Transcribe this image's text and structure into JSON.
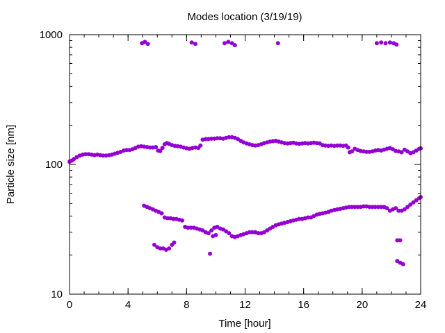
{
  "chart_data": {
    "type": "scatter",
    "title": "Modes location (3/19/19)",
    "xlabel": "Time [hour]",
    "ylabel": "Particle size [nm]",
    "xlim": [
      0,
      24
    ],
    "ylim": [
      10,
      1000
    ],
    "yscale": "log",
    "grid": false,
    "legend": "none",
    "x_ticks": [
      0,
      4,
      8,
      12,
      16,
      20,
      24
    ],
    "x_tick_labels": [
      "0",
      "4",
      "8",
      "12",
      "16",
      "20",
      "24"
    ],
    "y_ticks": [
      10,
      100,
      1000
    ],
    "y_tick_labels": [
      "10",
      "100",
      "1000"
    ],
    "marker_color": "#9400d3",
    "series": [
      {
        "points": [
          [
            0.0,
            105
          ],
          [
            0.15,
            107
          ],
          [
            0.3,
            110
          ],
          [
            0.5,
            114
          ],
          [
            0.7,
            117
          ],
          [
            0.9,
            119
          ],
          [
            1.1,
            120
          ],
          [
            1.3,
            120
          ],
          [
            1.5,
            119
          ],
          [
            1.7,
            118
          ],
          [
            1.9,
            119
          ],
          [
            2.1,
            118
          ],
          [
            2.3,
            117
          ],
          [
            2.5,
            117
          ],
          [
            2.7,
            118
          ],
          [
            2.9,
            119
          ],
          [
            3.1,
            121
          ],
          [
            3.3,
            123
          ],
          [
            3.5,
            125
          ],
          [
            3.7,
            128
          ],
          [
            3.9,
            129
          ],
          [
            4.1,
            129
          ],
          [
            4.3,
            131
          ],
          [
            4.5,
            134
          ],
          [
            4.7,
            137
          ],
          [
            4.9,
            138
          ],
          [
            5.1,
            137
          ],
          [
            5.3,
            136
          ],
          [
            5.5,
            135
          ],
          [
            5.7,
            135
          ],
          [
            5.9,
            136
          ],
          [
            6.05,
            128
          ],
          [
            6.2,
            127
          ],
          [
            6.35,
            134
          ],
          [
            6.5,
            143
          ],
          [
            6.65,
            146
          ],
          [
            6.8,
            144
          ],
          [
            7.0,
            141
          ],
          [
            7.2,
            139
          ],
          [
            7.4,
            138
          ],
          [
            7.6,
            137
          ],
          [
            7.8,
            135
          ],
          [
            8.0,
            133
          ],
          [
            8.2,
            132
          ],
          [
            8.4,
            134
          ],
          [
            8.6,
            135
          ],
          [
            8.8,
            134
          ],
          [
            8.95,
            140
          ],
          [
            9.1,
            155
          ],
          [
            9.3,
            157
          ],
          [
            9.5,
            157
          ],
          [
            9.7,
            158
          ],
          [
            9.9,
            158
          ],
          [
            10.1,
            159
          ],
          [
            10.3,
            159
          ],
          [
            10.5,
            158
          ],
          [
            10.7,
            160
          ],
          [
            10.9,
            162
          ],
          [
            11.1,
            162
          ],
          [
            11.3,
            160
          ],
          [
            11.5,
            157
          ],
          [
            11.7,
            152
          ],
          [
            11.9,
            148
          ],
          [
            12.1,
            145
          ],
          [
            12.3,
            143
          ],
          [
            12.5,
            141
          ],
          [
            12.7,
            140
          ],
          [
            12.9,
            141
          ],
          [
            13.1,
            143
          ],
          [
            13.3,
            146
          ],
          [
            13.5,
            148
          ],
          [
            13.7,
            150
          ],
          [
            13.9,
            151
          ],
          [
            14.1,
            152
          ],
          [
            14.3,
            150
          ],
          [
            14.5,
            148
          ],
          [
            14.7,
            146
          ],
          [
            14.9,
            145
          ],
          [
            15.1,
            146
          ],
          [
            15.3,
            147
          ],
          [
            15.5,
            145
          ],
          [
            15.7,
            144
          ],
          [
            15.9,
            145
          ],
          [
            16.1,
            146
          ],
          [
            16.3,
            145
          ],
          [
            16.5,
            146
          ],
          [
            16.7,
            147
          ],
          [
            16.9,
            146
          ],
          [
            17.1,
            145
          ],
          [
            17.3,
            141
          ],
          [
            17.5,
            140
          ],
          [
            17.7,
            139
          ],
          [
            17.9,
            140
          ],
          [
            18.1,
            139
          ],
          [
            18.3,
            140
          ],
          [
            18.5,
            140
          ],
          [
            18.7,
            139
          ],
          [
            18.9,
            140
          ],
          [
            19.05,
            135
          ],
          [
            19.15,
            124
          ],
          [
            19.3,
            126
          ],
          [
            19.5,
            132
          ],
          [
            19.7,
            129
          ],
          [
            19.9,
            127
          ],
          [
            20.1,
            126
          ],
          [
            20.3,
            125
          ],
          [
            20.5,
            125
          ],
          [
            20.7,
            126
          ],
          [
            20.9,
            128
          ],
          [
            21.1,
            129
          ],
          [
            21.3,
            128
          ],
          [
            21.5,
            130
          ],
          [
            21.7,
            132
          ],
          [
            21.9,
            134
          ],
          [
            22.1,
            131
          ],
          [
            22.3,
            127
          ],
          [
            22.5,
            126
          ],
          [
            22.7,
            124
          ],
          [
            22.9,
            130
          ],
          [
            23.1,
            126
          ],
          [
            23.3,
            122
          ],
          [
            23.5,
            124
          ],
          [
            23.7,
            128
          ],
          [
            23.9,
            132
          ],
          [
            24.0,
            133
          ],
          [
            5.1,
            48
          ],
          [
            5.3,
            47
          ],
          [
            5.5,
            46
          ],
          [
            5.7,
            45
          ],
          [
            5.9,
            44
          ],
          [
            6.1,
            43
          ],
          [
            6.3,
            42
          ],
          [
            6.5,
            39
          ],
          [
            6.7,
            38.5
          ],
          [
            6.9,
            38.5
          ],
          [
            7.1,
            38
          ],
          [
            7.3,
            38
          ],
          [
            7.5,
            37.5
          ],
          [
            7.7,
            37
          ],
          [
            7.9,
            33
          ],
          [
            8.1,
            32.5
          ],
          [
            8.3,
            32.5
          ],
          [
            8.5,
            32.5
          ],
          [
            8.7,
            32
          ],
          [
            8.9,
            31.5
          ],
          [
            9.1,
            31
          ],
          [
            9.3,
            30
          ],
          [
            9.5,
            29.5
          ],
          [
            9.7,
            31
          ],
          [
            9.9,
            32.5
          ],
          [
            10.1,
            33
          ],
          [
            10.3,
            32
          ],
          [
            10.5,
            31.5
          ],
          [
            10.7,
            30.5
          ],
          [
            10.9,
            29.5
          ],
          [
            11.1,
            28
          ],
          [
            11.3,
            27.5
          ],
          [
            11.5,
            28
          ],
          [
            11.7,
            28.5
          ],
          [
            11.9,
            29
          ],
          [
            12.1,
            29.5
          ],
          [
            12.3,
            30
          ],
          [
            12.5,
            30
          ],
          [
            12.7,
            30
          ],
          [
            12.9,
            29.5
          ],
          [
            13.1,
            29.5
          ],
          [
            13.3,
            30
          ],
          [
            13.5,
            31
          ],
          [
            13.7,
            32
          ],
          [
            13.9,
            33
          ],
          [
            14.1,
            34
          ],
          [
            14.3,
            34.5
          ],
          [
            14.5,
            35
          ],
          [
            14.7,
            35.5
          ],
          [
            14.9,
            36
          ],
          [
            15.1,
            36.5
          ],
          [
            15.3,
            37
          ],
          [
            15.5,
            37.5
          ],
          [
            15.7,
            38
          ],
          [
            15.9,
            38
          ],
          [
            16.1,
            38.5
          ],
          [
            16.3,
            39
          ],
          [
            16.5,
            39
          ],
          [
            16.7,
            40
          ],
          [
            16.9,
            41
          ],
          [
            17.1,
            41.5
          ],
          [
            17.3,
            42
          ],
          [
            17.5,
            42.5
          ],
          [
            17.7,
            43
          ],
          [
            17.9,
            44
          ],
          [
            18.1,
            44.5
          ],
          [
            18.3,
            45
          ],
          [
            18.5,
            45.5
          ],
          [
            18.7,
            46
          ],
          [
            18.9,
            46.5
          ],
          [
            19.1,
            47
          ],
          [
            19.3,
            47
          ],
          [
            19.5,
            47
          ],
          [
            19.7,
            47
          ],
          [
            19.9,
            47
          ],
          [
            20.1,
            47.5
          ],
          [
            20.3,
            47.5
          ],
          [
            20.5,
            47
          ],
          [
            20.7,
            47
          ],
          [
            20.9,
            47
          ],
          [
            21.1,
            47
          ],
          [
            21.3,
            47
          ],
          [
            21.5,
            47
          ],
          [
            21.7,
            46
          ],
          [
            21.9,
            44
          ],
          [
            22.1,
            45
          ],
          [
            22.3,
            46
          ],
          [
            22.5,
            44
          ],
          [
            22.7,
            44
          ],
          [
            22.9,
            45
          ],
          [
            23.1,
            47
          ],
          [
            23.3,
            49
          ],
          [
            23.5,
            51
          ],
          [
            23.7,
            53
          ],
          [
            23.9,
            55
          ],
          [
            24.0,
            56
          ],
          [
            5.8,
            24
          ],
          [
            6.0,
            23
          ],
          [
            6.2,
            22.5
          ],
          [
            6.4,
            22.5
          ],
          [
            6.6,
            22
          ],
          [
            6.8,
            22.5
          ],
          [
            7.0,
            24
          ],
          [
            7.15,
            25
          ],
          [
            9.6,
            20.5
          ],
          [
            9.8,
            28
          ],
          [
            10.0,
            28.5
          ],
          [
            22.4,
            26
          ],
          [
            22.6,
            26
          ],
          [
            22.4,
            18
          ],
          [
            22.6,
            17.5
          ],
          [
            22.8,
            17
          ],
          [
            4.95,
            860
          ],
          [
            5.15,
            880
          ],
          [
            5.35,
            850
          ],
          [
            8.35,
            870
          ],
          [
            8.6,
            850
          ],
          [
            10.6,
            860
          ],
          [
            10.85,
            880
          ],
          [
            11.1,
            860
          ],
          [
            11.3,
            830
          ],
          [
            14.25,
            860
          ],
          [
            21.0,
            860
          ],
          [
            21.3,
            870
          ],
          [
            21.6,
            860
          ],
          [
            21.9,
            870
          ],
          [
            22.15,
            860
          ],
          [
            22.35,
            840
          ]
        ]
      }
    ]
  }
}
